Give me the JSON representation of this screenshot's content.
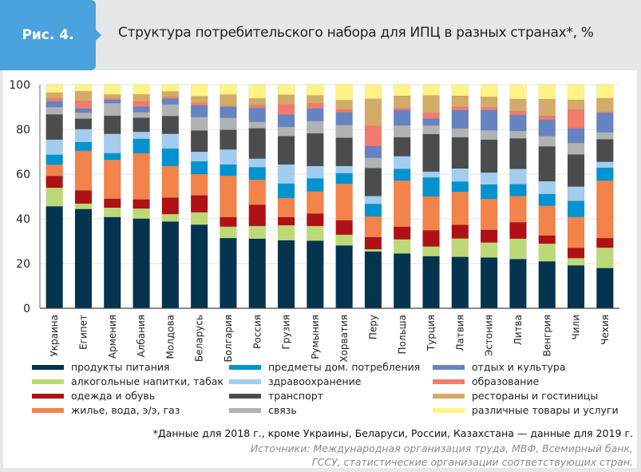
{
  "header": {
    "figure_label": "Рис. 4.",
    "title": "Структура потребительского набора для ИПЦ в разных странах*, %",
    "accent_color": "#4aa3dc"
  },
  "footnote": "*Данные для 2018 г., кроме Украины, Беларуси, России, Казахстана — данные для 2019 г.",
  "sources": [
    "Источники: Международная организация труда, МВФ, Всемирный банк,",
    "ГССУ, статистические организации соответствующих стран."
  ],
  "chart_data": {
    "type": "bar",
    "stacked": true,
    "title": "Структура потребительского набора для ИПЦ в разных странах*, %",
    "xlabel": "",
    "ylabel": "",
    "ylim": [
      0,
      100
    ],
    "yticks": [
      0,
      20,
      40,
      60,
      80,
      100
    ],
    "grid": true,
    "legend_position": "bottom",
    "categories": [
      "Украина",
      "Египет",
      "Армения",
      "Албания",
      "Молдова",
      "Беларусь",
      "Болгария",
      "Россия",
      "Грузия",
      "Румыния",
      "Хорватия",
      "Перу",
      "Польша",
      "Турция",
      "Латвия",
      "Эстония",
      "Литва",
      "Венгрия",
      "Чили",
      "Чехия"
    ],
    "series": [
      {
        "name": "продукты питания",
        "color": "#04344f",
        "values": [
          45.6,
          44.4,
          40.8,
          40.1,
          38.8,
          37.4,
          31.4,
          31.1,
          30.4,
          30.2,
          28.1,
          25.4,
          24.5,
          23.3,
          23.0,
          22.7,
          22.0,
          21.0,
          19.2,
          18.0
        ]
      },
      {
        "name": "алкогольные напитки, табак",
        "color": "#bcd977",
        "values": [
          8.3,
          2.4,
          4.2,
          4.5,
          3.3,
          5.5,
          5.1,
          5.7,
          6.7,
          6.6,
          4.8,
          1.0,
          6.3,
          4.3,
          8.2,
          6.7,
          9.1,
          7.9,
          3.2,
          9.1
        ]
      },
      {
        "name": "одежда и обувь",
        "color": "#b01116",
        "values": [
          5.3,
          5.9,
          4.0,
          4.1,
          7.4,
          7.6,
          4.3,
          9.5,
          3.7,
          5.6,
          6.4,
          5.4,
          5.7,
          7.3,
          6.1,
          5.7,
          7.4,
          3.6,
          4.6,
          4.3
        ]
      },
      {
        "name": "жилье, вода, э/э, газ",
        "color": "#f2834a",
        "values": [
          5.0,
          17.7,
          17.4,
          20.6,
          14.1,
          9.5,
          18.4,
          11.2,
          8.5,
          9.9,
          16.4,
          9.3,
          20.6,
          15.1,
          14.8,
          13.8,
          11.7,
          13.3,
          13.8,
          25.7
        ]
      },
      {
        "name": "предметы дом. потребления",
        "color": "#0093d0",
        "values": [
          4.5,
          3.9,
          3.0,
          6.5,
          7.8,
          5.7,
          5.1,
          5.6,
          6.5,
          5.8,
          4.7,
          5.6,
          5.2,
          8.5,
          4.6,
          6.5,
          5.3,
          5.3,
          7.2,
          5.8
        ]
      },
      {
        "name": "здравоохранение",
        "color": "#a3cdee",
        "values": [
          6.7,
          5.8,
          8.6,
          3.1,
          6.6,
          4.3,
          6.7,
          3.8,
          8.5,
          5.5,
          3.2,
          3.5,
          5.7,
          2.6,
          5.8,
          5.3,
          6.8,
          5.7,
          6.4,
          2.6
        ]
      },
      {
        "name": "транспорт",
        "color": "#4b4c4e",
        "values": [
          11.3,
          4.7,
          8.1,
          6.3,
          8.0,
          9.5,
          8.8,
          13.6,
          12.7,
          14.6,
          12.7,
          12.5,
          8.5,
          16.8,
          14.0,
          14.7,
          13.7,
          15.6,
          14.4,
          10.1
        ]
      },
      {
        "name": "связь",
        "color": "#b1b2b4",
        "values": [
          3.2,
          2.7,
          5.6,
          2.4,
          5.2,
          6.0,
          5.3,
          2.8,
          4.1,
          5.5,
          5.6,
          4.6,
          5.3,
          3.8,
          3.9,
          4.2,
          3.3,
          4.6,
          5.1,
          3.1
        ]
      },
      {
        "name": "отдых и культура",
        "color": "#6683c2",
        "values": [
          2.7,
          1.9,
          1.5,
          2.6,
          2.6,
          5.2,
          5.0,
          6.3,
          5.6,
          5.7,
          5.8,
          5.2,
          6.9,
          3.2,
          8.2,
          9.0,
          7.1,
          7.4,
          6.7,
          8.7
        ]
      },
      {
        "name": "образование",
        "color": "#f27a6e",
        "values": [
          1.3,
          3.3,
          0.5,
          2.4,
          0.8,
          1.2,
          0.5,
          1.4,
          4.6,
          2.3,
          1.2,
          9.2,
          0.8,
          2.4,
          1.4,
          1.2,
          1.8,
          1.7,
          8.3,
          0.5
        ]
      },
      {
        "name": "рестораны и гостиницы",
        "color": "#d3aa68",
        "values": [
          2.6,
          4.4,
          1.9,
          3.1,
          2.4,
          2.9,
          5.0,
          2.9,
          4.2,
          3.5,
          4.2,
          12.0,
          5.5,
          7.9,
          5.0,
          4.8,
          5.4,
          7.5,
          4.3,
          6.1
        ]
      },
      {
        "name": "различные товары и услуги",
        "color": "#fff385",
        "values": [
          3.5,
          2.9,
          4.4,
          4.3,
          3.0,
          5.2,
          4.4,
          6.1,
          4.5,
          4.8,
          6.9,
          6.3,
          5.0,
          4.8,
          5.0,
          5.4,
          6.4,
          6.4,
          6.8,
          6.0
        ]
      }
    ]
  }
}
